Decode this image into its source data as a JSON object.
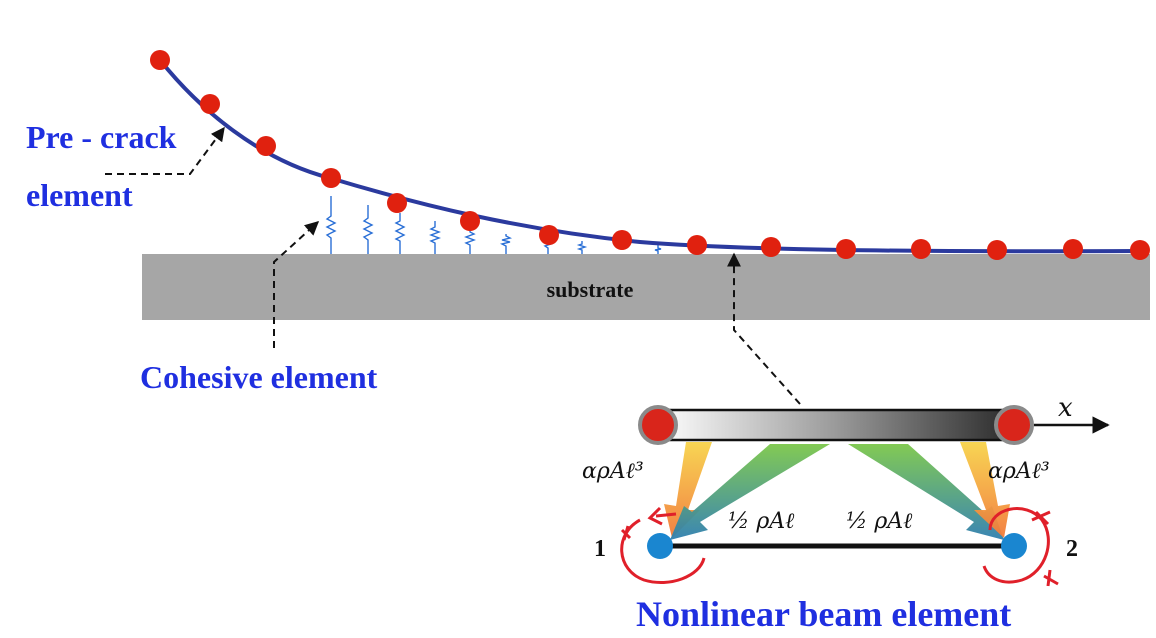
{
  "labels": {
    "precrack_line1": "Pre - crack",
    "precrack_line2": "element",
    "cohesive": "Cohesive element",
    "substrate": "substrate",
    "nonlinear_beam": "Nonlinear beam element",
    "axis_x": "x",
    "node_1": "1",
    "node_2": "2",
    "mass_rot_left": "αρAℓ³",
    "mass_rot_right": "αρAℓ³",
    "mass_half_left": "½ ρAℓ",
    "mass_half_right": "½ ρAℓ"
  },
  "colors": {
    "beam_curve": "#2b3a9e",
    "node_red": "#e0210f",
    "node_blue": "#1a86d0",
    "substrate": "#a6a6a6",
    "label_blue": "#1f2fe0",
    "spring": "#2a6fd6",
    "rotation_arrow": "#e0202a"
  }
}
